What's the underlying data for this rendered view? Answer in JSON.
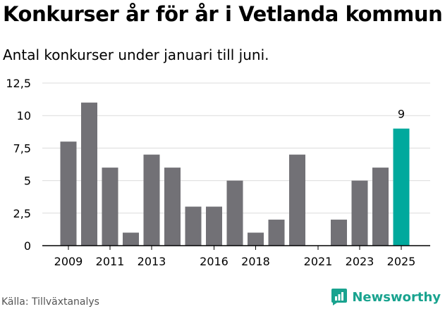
{
  "title": "Konkurser år för år i Vetlanda kommun",
  "subtitle": "Antal konkurser under januari till juni.",
  "source": "Källa: Tillväxtanalys",
  "brand": {
    "name": "Newsworthy",
    "icon": "newsworthy-logo-icon",
    "color": "#19a38f"
  },
  "chart_data": {
    "type": "bar",
    "categories": [
      "2009",
      "2010",
      "2011",
      "2012",
      "2013",
      "2014",
      "2015",
      "2016",
      "2017",
      "2018",
      "2019",
      "2020",
      "2021",
      "2022",
      "2023",
      "2024",
      "2025"
    ],
    "values": [
      8,
      11,
      6,
      1,
      7,
      6,
      3,
      3,
      5,
      1,
      2,
      7,
      0,
      2,
      5,
      6,
      9
    ],
    "x_tick_labels": [
      "2009",
      "2011",
      "2013",
      "2016",
      "2018",
      "2021",
      "2023",
      "2025"
    ],
    "y_ticks": [
      "0",
      "2,5",
      "5",
      "7,5",
      "10",
      "12,5"
    ],
    "y_tick_values": [
      0,
      2.5,
      5,
      7.5,
      10,
      12.5
    ],
    "ylim": [
      0,
      12.5
    ],
    "highlight": {
      "category": "2025",
      "label": "9",
      "color": "#00a99d"
    },
    "bar_color": "#727176",
    "grid": true
  }
}
